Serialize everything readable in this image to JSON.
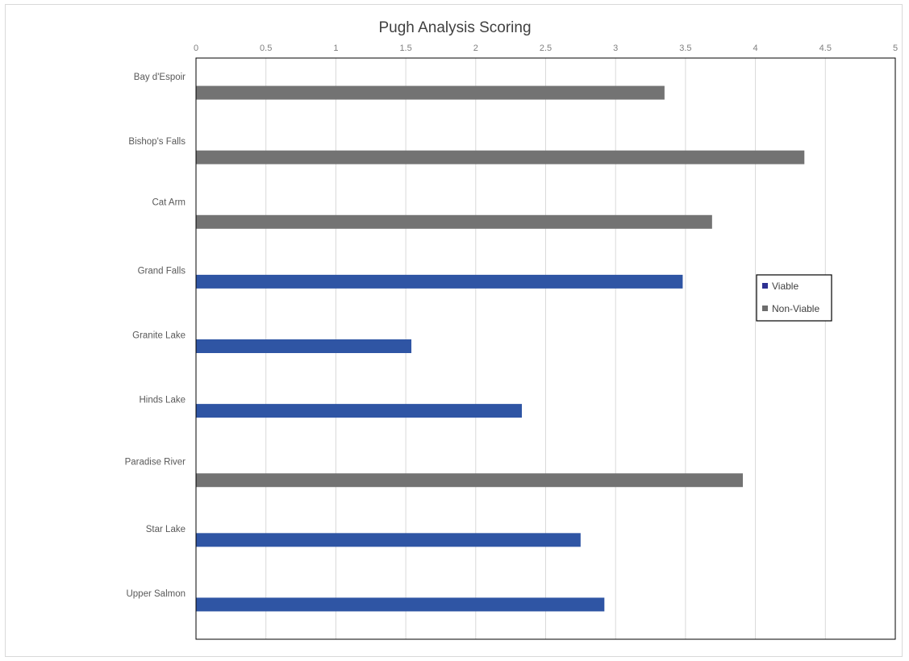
{
  "chart_data": {
    "type": "bar",
    "orientation": "horizontal",
    "title": "Pugh Analysis Scoring",
    "xlabel": "",
    "ylabel": "",
    "xlim": [
      0,
      5
    ],
    "x_ticks": [
      "0",
      "0.5",
      "1",
      "1.5",
      "2",
      "2.5",
      "3",
      "3.5",
      "4",
      "4.5",
      "5"
    ],
    "x_axis_position": "top",
    "grid": true,
    "legend_position": "right",
    "categories": [
      "Bay d'Espoir",
      "Bishop's Falls",
      "Cat Arm",
      "Grand Falls",
      "Granite Lake",
      "Hinds Lake",
      "Paradise River",
      "Star Lake",
      "Upper Salmon"
    ],
    "series": [
      {
        "name": "Viable",
        "color": "#2f55a4",
        "values": [
          null,
          null,
          null,
          3.48,
          1.54,
          2.33,
          null,
          2.75,
          2.92
        ]
      },
      {
        "name": "Non-Viable",
        "color": "#737373",
        "values": [
          3.35,
          4.35,
          3.69,
          null,
          null,
          null,
          3.91,
          null,
          null
        ]
      }
    ],
    "legend": [
      {
        "label": "Viable",
        "color": "#2e3192"
      },
      {
        "label": "Non-Viable",
        "color": "#6d6d6d"
      }
    ]
  }
}
